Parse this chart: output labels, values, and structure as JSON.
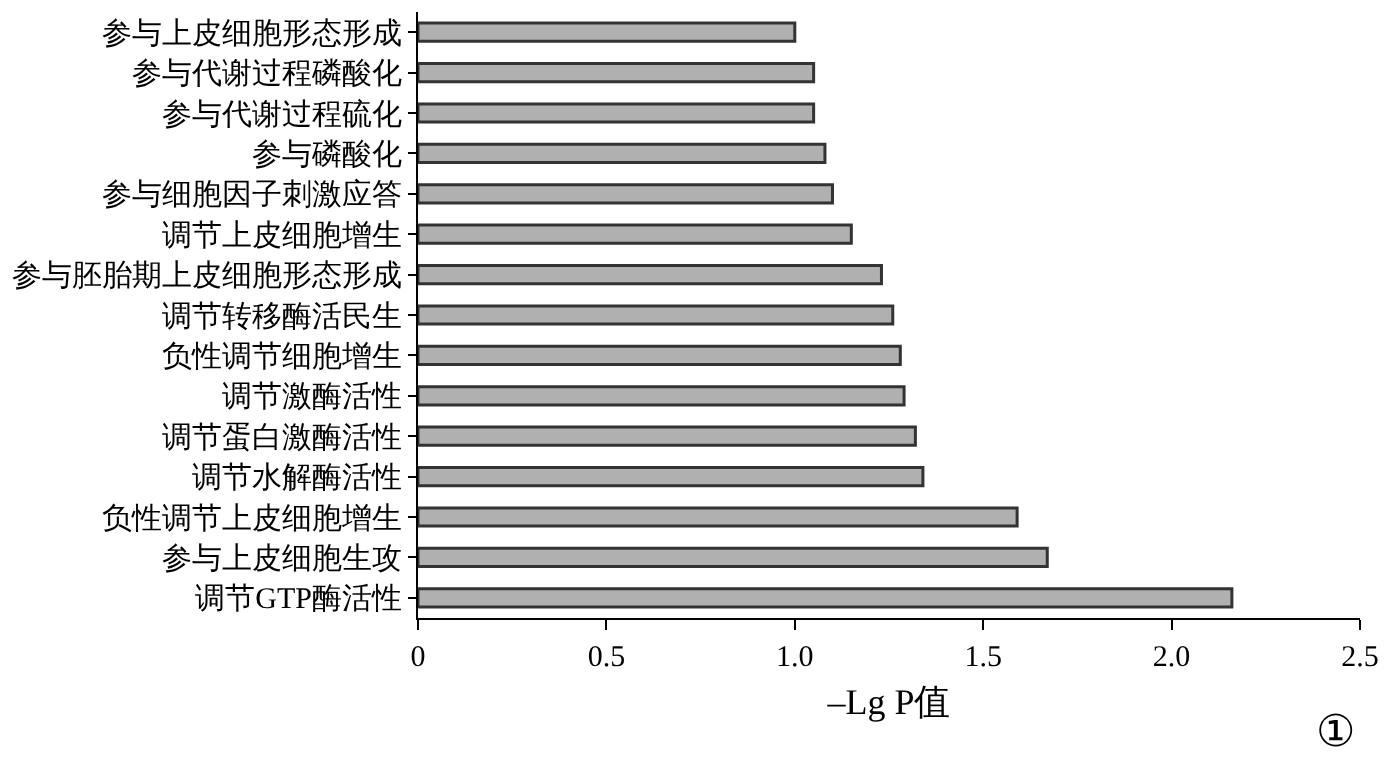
{
  "chart_data": {
    "type": "bar",
    "orientation": "horizontal",
    "xlabel": "–Lg P值",
    "categories": [
      "参与上皮细胞形态形成",
      "参与代谢过程磷酸化",
      "参与代谢过程硫化",
      "参与磷酸化",
      "参与细胞因子刺激应答",
      "调节上皮细胞增生",
      "参与胚胎期上皮细胞形态形成",
      "调节转移酶活民生",
      "负性调节细胞增生",
      "调节激酶活性",
      "调节蛋白激酶活性",
      "调节水解酶活性",
      "负性调节上皮细胞增生",
      "参与上皮细胞生攻",
      "调节GTP酶活性"
    ],
    "values": [
      1.0,
      1.05,
      1.05,
      1.08,
      1.1,
      1.15,
      1.23,
      1.26,
      1.28,
      1.29,
      1.32,
      1.34,
      1.59,
      1.67,
      2.16
    ],
    "color": "#b0b0b0",
    "xlim": [
      0,
      2.5
    ],
    "xticks": [
      0,
      0.5,
      {
        "value": 1,
        "label": "1.0"
      },
      1.5,
      {
        "value": 2,
        "label": "2.0"
      },
      2.5
    ],
    "grid": false,
    "legend": false,
    "annotations": [
      "①"
    ]
  }
}
